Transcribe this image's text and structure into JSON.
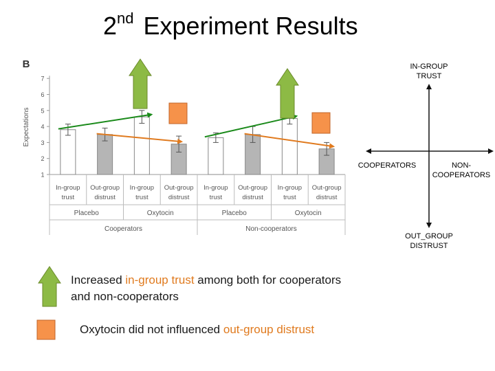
{
  "title": {
    "ordinal": "2",
    "suffix": "nd",
    "text": "Experiment Results"
  },
  "chart_data": {
    "type": "bar",
    "panel_label": "B",
    "ylabel": "Expectations",
    "ylim": [
      1,
      7
    ],
    "yticks": [
      1,
      2,
      3,
      4,
      5,
      6,
      7
    ],
    "categories": [
      "In-group trust",
      "Out-group distrust",
      "In-group trust",
      "Out-group distrust",
      "In-group trust",
      "Out-group distrust",
      "In-group trust",
      "Out-group distrust"
    ],
    "tick_labels": [
      [
        "In-group",
        "trust"
      ],
      [
        "Out-group",
        "distrust"
      ],
      [
        "In-group",
        "trust"
      ],
      [
        "Out-group",
        "distrust"
      ],
      [
        "In-group",
        "trust"
      ],
      [
        "Out-group",
        "distrust"
      ],
      [
        "In-group",
        "trust"
      ],
      [
        "Out-group",
        "distrust"
      ]
    ],
    "values": [
      3.8,
      3.5,
      4.6,
      2.9,
      3.3,
      3.5,
      4.5,
      2.6
    ],
    "errors": [
      0.35,
      0.4,
      0.4,
      0.5,
      0.3,
      0.5,
      0.35,
      0.4
    ],
    "bar_kinds": [
      "in",
      "out",
      "in",
      "out",
      "in",
      "out",
      "in",
      "out"
    ],
    "conditions": [
      "Placebo",
      "Oxytocin",
      "Placebo",
      "Oxytocin"
    ],
    "groups": [
      "Cooperators",
      "Non-cooperators"
    ],
    "colors": {
      "in_bar": "#ffffff",
      "out_bar": "#b5b5b5",
      "green_line": "#1a8a1a",
      "orange_line": "#e07a1e",
      "arrow_fill": "#8dba45",
      "square_fill": "#f6924a"
    }
  },
  "axes_diagram": {
    "top": "IN-GROUP TRUST",
    "bottom": "OUT_GROUP DISTRUST",
    "left": "COOPERATORS",
    "right": "NON-COOPERATORS"
  },
  "legend": {
    "arrow_text_1": "Increased ",
    "arrow_hl": "in-group trust",
    "arrow_text_2": " among both for cooperators and non-cooperators",
    "square_text_1": "Oxytocin did not influenced ",
    "square_hl": "out-group distrust"
  }
}
